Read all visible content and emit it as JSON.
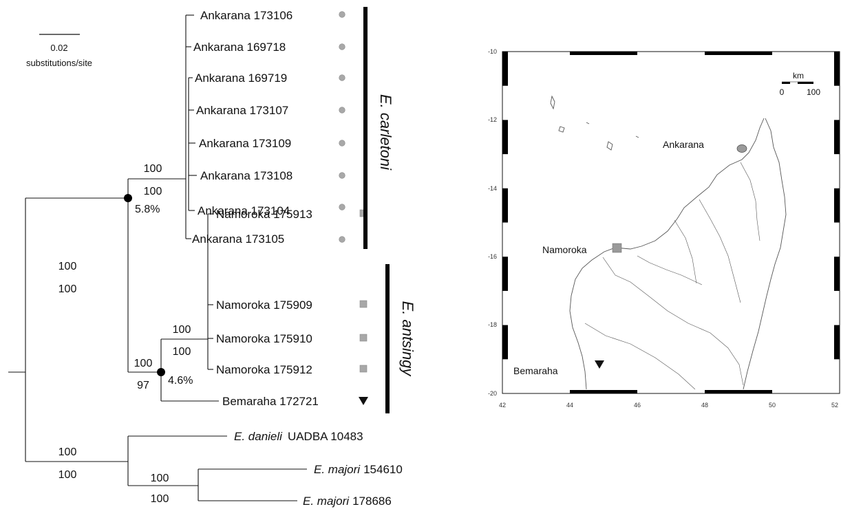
{
  "scale_bar": {
    "value": "0.02",
    "unit": "substitutions/site"
  },
  "taxa": [
    {
      "genus": "",
      "label": "Ankarana 173106",
      "symbol": "circle"
    },
    {
      "genus": "",
      "label": "Ankarana 169718",
      "symbol": "circle"
    },
    {
      "genus": "",
      "label": "Ankarana 169719",
      "symbol": "circle"
    },
    {
      "genus": "",
      "label": "Ankarana 173107",
      "symbol": "circle"
    },
    {
      "genus": "",
      "label": "Ankarana 173109",
      "symbol": "circle"
    },
    {
      "genus": "",
      "label": "Ankarana 173108",
      "symbol": "circle"
    },
    {
      "genus": "",
      "label": "Ankarana 173104",
      "symbol": "circle"
    },
    {
      "genus": "",
      "label": "Ankarana 173105",
      "symbol": "circle"
    },
    {
      "genus": "",
      "label": "Namoroka 175913",
      "symbol": "square"
    },
    {
      "genus": "",
      "label": "Namoroka 175909",
      "symbol": "square"
    },
    {
      "genus": "",
      "label": "Namoroka 175910",
      "symbol": "square"
    },
    {
      "genus": "",
      "label": "Namoroka 175912",
      "symbol": "square"
    },
    {
      "genus": "",
      "label": "Bemaraha 172721",
      "symbol": "triangle"
    },
    {
      "genus": "E. danieli",
      "label": "UADBA 10483",
      "symbol": ""
    },
    {
      "genus": "E. majori",
      "label": "154610",
      "symbol": ""
    },
    {
      "genus": "E. majori",
      "label": "178686",
      "symbol": ""
    }
  ],
  "support": {
    "carletoni": {
      "top": "100",
      "bottom": "100"
    },
    "carl_ants": {
      "top": "100",
      "bottom": "100",
      "divergence": "5.8%"
    },
    "antsingy": {
      "top": "100",
      "bottom": "97",
      "divergence": "4.6%"
    },
    "namoroka": {
      "top": "100",
      "bottom": "100"
    },
    "outgroup": {
      "top": "100",
      "bottom": "100"
    },
    "majori": {
      "top": "100",
      "bottom": "100"
    }
  },
  "clades": {
    "carletoni": "E. carletoni",
    "antsingy": "E. antsingy"
  },
  "map": {
    "x_ticks": [
      "42",
      "44",
      "46",
      "48",
      "50",
      "52"
    ],
    "y_ticks": [
      "-10",
      "-12",
      "-14",
      "-16",
      "-18",
      "-20"
    ],
    "scale": {
      "unit": "km",
      "start": "0",
      "end": "100"
    },
    "localities": [
      {
        "name": "Ankarana",
        "symbol": "circle"
      },
      {
        "name": "Namoroka",
        "symbol": "square"
      },
      {
        "name": "Bemaraha",
        "symbol": "triangle"
      }
    ]
  },
  "colors": {
    "line": "#111111",
    "marker_gray": "#a8a8a8",
    "coast": "#555555"
  }
}
